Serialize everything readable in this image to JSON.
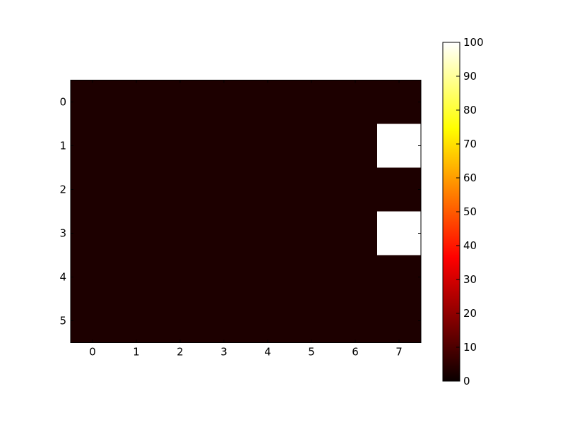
{
  "chart_data": {
    "type": "heatmap",
    "rows": [
      "0",
      "1",
      "2",
      "3",
      "4",
      "5"
    ],
    "columns": [
      "0",
      "1",
      "2",
      "3",
      "4",
      "5",
      "6",
      "7"
    ],
    "values": [
      [
        0,
        0,
        0,
        0,
        0,
        0,
        0,
        0
      ],
      [
        0,
        0,
        0,
        0,
        0,
        0,
        0,
        100
      ],
      [
        0,
        0,
        0,
        0,
        0,
        0,
        0,
        0
      ],
      [
        0,
        0,
        0,
        0,
        0,
        0,
        0,
        100
      ],
      [
        0,
        0,
        0,
        0,
        0,
        0,
        0,
        0
      ],
      [
        0,
        0,
        0,
        0,
        0,
        0,
        0,
        0
      ]
    ],
    "colormap": "hot",
    "colorbar": {
      "range": [
        0,
        100
      ],
      "ticks": [
        "0",
        "10",
        "20",
        "30",
        "40",
        "50",
        "60",
        "70",
        "80",
        "90",
        "100"
      ],
      "position": "right"
    },
    "title": "",
    "xlabel": "",
    "ylabel": "",
    "grid": false
  }
}
